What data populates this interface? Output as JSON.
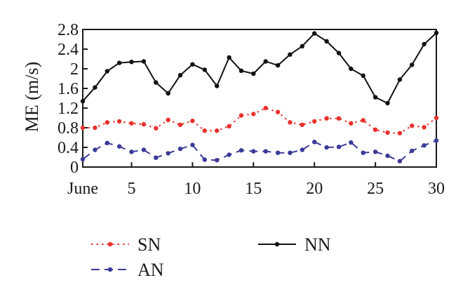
{
  "chart_data": {
    "type": "line",
    "title": "",
    "xlabel": "",
    "ylabel": "ME (m/s)",
    "xlim": [
      1,
      30
    ],
    "ylim": [
      0,
      2.8
    ],
    "x_ticks": [
      1,
      5,
      10,
      15,
      20,
      25,
      30
    ],
    "x_tick_labels": [
      "June",
      "5",
      "10",
      "15",
      "20",
      "25",
      "30"
    ],
    "y_ticks": [
      0,
      0.4,
      0.8,
      1.2,
      1.6,
      2,
      2.4,
      2.8
    ],
    "y_tick_labels": [
      "0",
      "0.4",
      "0.8",
      "1.2",
      "1.6",
      "2",
      "2.4",
      "2.8"
    ],
    "grid": false,
    "legend_position": "bottom",
    "x": [
      1,
      2,
      3,
      4,
      5,
      6,
      7,
      8,
      9,
      10,
      11,
      12,
      13,
      14,
      15,
      16,
      17,
      18,
      19,
      20,
      21,
      22,
      23,
      24,
      25,
      26,
      27,
      28,
      29,
      30
    ],
    "series": [
      {
        "name": "SN",
        "color": "#e8322c",
        "line_style": "dotted",
        "values": [
          0.8,
          0.8,
          0.91,
          0.93,
          0.89,
          0.87,
          0.79,
          0.96,
          0.86,
          0.94,
          0.74,
          0.74,
          0.83,
          1.05,
          1.08,
          1.2,
          1.12,
          0.91,
          0.86,
          0.93,
          0.99,
          0.99,
          0.89,
          0.95,
          0.76,
          0.7,
          0.69,
          0.84,
          0.81,
          1.0
        ]
      },
      {
        "name": "AN",
        "color": "#3b3b99",
        "line_style": "dashed",
        "values": [
          0.16,
          0.35,
          0.49,
          0.42,
          0.31,
          0.35,
          0.19,
          0.28,
          0.37,
          0.45,
          0.15,
          0.14,
          0.25,
          0.34,
          0.32,
          0.32,
          0.29,
          0.29,
          0.35,
          0.51,
          0.4,
          0.41,
          0.5,
          0.29,
          0.31,
          0.23,
          0.12,
          0.33,
          0.44,
          0.54
        ]
      },
      {
        "name": "NN",
        "color": "#111111",
        "line_style": "solid",
        "values": [
          1.34,
          1.62,
          1.95,
          2.12,
          2.14,
          2.15,
          1.72,
          1.5,
          1.87,
          2.09,
          1.98,
          1.65,
          2.23,
          1.96,
          1.9,
          2.15,
          2.07,
          2.29,
          2.46,
          2.72,
          2.56,
          2.32,
          2.0,
          1.86,
          1.42,
          1.3,
          1.78,
          2.08,
          2.5,
          2.73
        ]
      }
    ]
  }
}
